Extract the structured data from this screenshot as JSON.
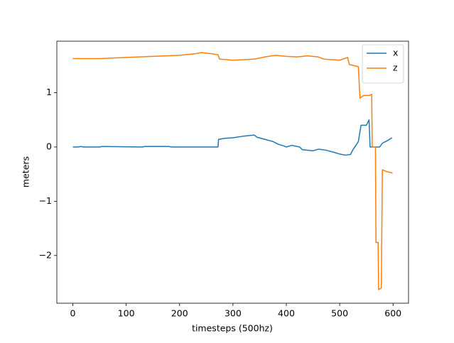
{
  "chart_data": {
    "type": "line",
    "xlabel": "timesteps (500hz)",
    "ylabel": "meters",
    "xlim": [
      -30,
      629
    ],
    "ylim": [
      -2.88,
      1.95
    ],
    "xticks": [
      0,
      100,
      200,
      300,
      400,
      500,
      600
    ],
    "yticks": [
      {
        "value": -2,
        "label": "−2"
      },
      {
        "value": -1,
        "label": "−1"
      },
      0,
      1
    ],
    "legend": "upper right",
    "series": [
      {
        "name": "x",
        "color": "#1f77b4",
        "x": [
          0,
          10,
          15,
          20,
          50,
          55,
          130,
          135,
          180,
          185,
          272,
          273,
          285,
          300,
          320,
          340,
          345,
          360,
          375,
          385,
          395,
          400,
          410,
          425,
          430,
          450,
          460,
          475,
          490,
          500,
          510,
          520,
          525,
          535,
          540,
          550,
          555,
          557,
          575,
          580,
          590,
          598
        ],
        "values": [
          0.0,
          0.0,
          0.01,
          0.0,
          0.0,
          0.01,
          0.0,
          0.01,
          0.01,
          0.0,
          0.0,
          0.14,
          0.16,
          0.17,
          0.2,
          0.22,
          0.18,
          0.14,
          0.1,
          0.05,
          0.02,
          0.0,
          0.03,
          0.0,
          -0.05,
          -0.07,
          -0.04,
          -0.06,
          -0.1,
          -0.13,
          -0.15,
          -0.14,
          -0.05,
          0.1,
          0.4,
          0.4,
          0.5,
          0.0,
          0.0,
          0.07,
          0.12,
          0.17
        ]
      },
      {
        "name": "z",
        "color": "#ff7f0e",
        "x": [
          0,
          50,
          100,
          150,
          200,
          230,
          240,
          260,
          272,
          275,
          300,
          340,
          360,
          380,
          400,
          420,
          440,
          460,
          470,
          500,
          515,
          518,
          535,
          538,
          545,
          555,
          560,
          561,
          567,
          568,
          572,
          573,
          578,
          580,
          587,
          599
        ],
        "values": [
          1.63,
          1.63,
          1.65,
          1.67,
          1.69,
          1.72,
          1.74,
          1.72,
          1.7,
          1.62,
          1.6,
          1.62,
          1.66,
          1.69,
          1.67,
          1.66,
          1.68,
          1.66,
          1.62,
          1.6,
          1.65,
          1.52,
          1.48,
          0.9,
          0.95,
          0.95,
          0.97,
          0.0,
          0.0,
          -1.76,
          -1.76,
          -2.63,
          -2.6,
          -0.42,
          -0.45,
          -0.48
        ]
      }
    ]
  }
}
